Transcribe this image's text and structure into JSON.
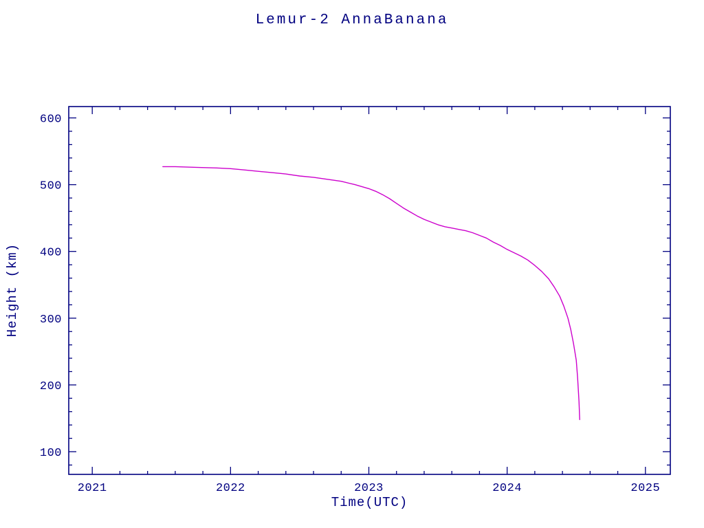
{
  "page_title": "Lemur-2 AnnaBanana",
  "chart_data": {
    "type": "line",
    "title": "Lemur-2 AnnaBanana",
    "xlabel": "Time(UTC)",
    "ylabel": "Height (km)",
    "xlim": [
      2020.83,
      2025.18
    ],
    "ylim": [
      66,
      617
    ],
    "x_ticks": [
      2021,
      2022,
      2023,
      2024,
      2025
    ],
    "y_ticks": [
      100,
      200,
      300,
      400,
      500,
      600
    ],
    "x_minor_step": 0.2,
    "y_minor_step": 20,
    "grid": false,
    "legend": "none",
    "axis_color": "#000080",
    "line_color": "#cc00cc",
    "series": [
      {
        "name": "Lemur-2 AnnaBanana height",
        "points": [
          [
            2021.51,
            527
          ],
          [
            2021.6,
            527
          ],
          [
            2021.75,
            526
          ],
          [
            2021.9,
            525
          ],
          [
            2022.0,
            524
          ],
          [
            2022.1,
            522
          ],
          [
            2022.2,
            520
          ],
          [
            2022.3,
            518
          ],
          [
            2022.4,
            516
          ],
          [
            2022.5,
            513
          ],
          [
            2022.6,
            511
          ],
          [
            2022.7,
            508
          ],
          [
            2022.8,
            505
          ],
          [
            2022.9,
            500
          ],
          [
            2023.0,
            494
          ],
          [
            2023.05,
            490
          ],
          [
            2023.1,
            485
          ],
          [
            2023.15,
            479
          ],
          [
            2023.2,
            472
          ],
          [
            2023.25,
            465
          ],
          [
            2023.3,
            459
          ],
          [
            2023.35,
            453
          ],
          [
            2023.4,
            448
          ],
          [
            2023.45,
            444
          ],
          [
            2023.5,
            440
          ],
          [
            2023.55,
            437
          ],
          [
            2023.6,
            435
          ],
          [
            2023.65,
            433
          ],
          [
            2023.7,
            431
          ],
          [
            2023.75,
            428
          ],
          [
            2023.8,
            424
          ],
          [
            2023.85,
            420
          ],
          [
            2023.9,
            414
          ],
          [
            2023.95,
            409
          ],
          [
            2024.0,
            403
          ],
          [
            2024.05,
            398
          ],
          [
            2024.1,
            393
          ],
          [
            2024.15,
            387
          ],
          [
            2024.2,
            379
          ],
          [
            2024.25,
            370
          ],
          [
            2024.3,
            359
          ],
          [
            2024.34,
            347
          ],
          [
            2024.38,
            333
          ],
          [
            2024.41,
            318
          ],
          [
            2024.44,
            300
          ],
          [
            2024.46,
            283
          ],
          [
            2024.48,
            262
          ],
          [
            2024.5,
            237
          ],
          [
            2024.51,
            210
          ],
          [
            2024.52,
            175
          ],
          [
            2024.525,
            148
          ]
        ]
      }
    ]
  }
}
